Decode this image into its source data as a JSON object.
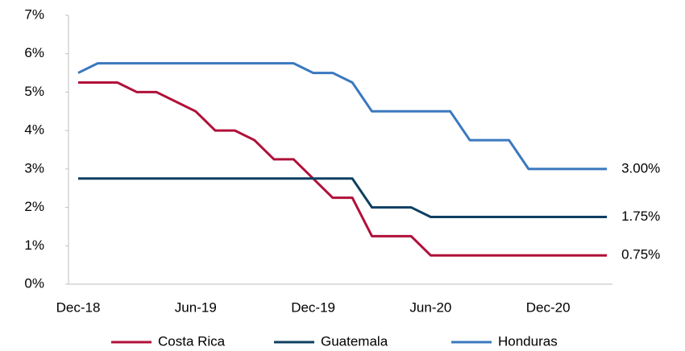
{
  "chart_data": {
    "type": "line",
    "categories": [
      "Dec-18",
      null,
      null,
      null,
      null,
      null,
      "Jun-19",
      null,
      null,
      null,
      null,
      null,
      "Dec-19",
      null,
      null,
      null,
      null,
      null,
      "Jun-20",
      null,
      null,
      null,
      null,
      null,
      "Dec-20",
      null,
      null,
      null
    ],
    "series": [
      {
        "name": "Costa Rica",
        "color": "#b0103a",
        "values": [
          5.25,
          5.25,
          5.25,
          5.0,
          5.0,
          4.75,
          4.5,
          4.0,
          4.0,
          3.75,
          3.25,
          3.25,
          2.75,
          2.25,
          2.25,
          1.25,
          1.25,
          1.25,
          0.75,
          0.75,
          0.75,
          0.75,
          0.75,
          0.75,
          0.75,
          0.75,
          0.75,
          0.75
        ],
        "value_labels": [
          null,
          null,
          null,
          null,
          null,
          null,
          null,
          null,
          null,
          null,
          null,
          null,
          null,
          null,
          null,
          null,
          null,
          null,
          null,
          null,
          null,
          null,
          null,
          null,
          null,
          null,
          null,
          "0.75%"
        ]
      },
      {
        "name": "Guatemala",
        "color": "#0d3f62",
        "values": [
          2.75,
          2.75,
          2.75,
          2.75,
          2.75,
          2.75,
          2.75,
          2.75,
          2.75,
          2.75,
          2.75,
          2.75,
          2.75,
          2.75,
          2.75,
          2.0,
          2.0,
          2.0,
          1.75,
          1.75,
          1.75,
          1.75,
          1.75,
          1.75,
          1.75,
          1.75,
          1.75,
          1.75
        ],
        "value_labels": [
          null,
          null,
          null,
          null,
          null,
          null,
          null,
          null,
          null,
          null,
          null,
          null,
          null,
          null,
          null,
          null,
          null,
          null,
          null,
          null,
          null,
          null,
          null,
          null,
          null,
          null,
          null,
          "1.75%"
        ]
      },
      {
        "name": "Honduras",
        "color": "#3a78bf",
        "values": [
          5.5,
          5.75,
          5.75,
          5.75,
          5.75,
          5.75,
          5.75,
          5.75,
          5.75,
          5.75,
          5.75,
          5.75,
          5.5,
          5.5,
          5.25,
          4.5,
          4.5,
          4.5,
          4.5,
          4.5,
          3.75,
          3.75,
          3.75,
          3.0,
          3.0,
          3.0,
          3.0,
          3.0
        ],
        "value_labels": [
          null,
          null,
          null,
          null,
          null,
          null,
          null,
          null,
          null,
          null,
          null,
          null,
          null,
          null,
          null,
          null,
          null,
          null,
          null,
          null,
          null,
          null,
          null,
          null,
          null,
          null,
          null,
          "3.00%"
        ]
      }
    ],
    "ylim": [
      0,
      7
    ],
    "yticks": [
      {
        "value": 0,
        "label": "0%"
      },
      {
        "value": 1,
        "label": "1%"
      },
      {
        "value": 2,
        "label": "2%"
      },
      {
        "value": 3,
        "label": "3%"
      },
      {
        "value": 4,
        "label": "4%"
      },
      {
        "value": 5,
        "label": "5%"
      },
      {
        "value": 6,
        "label": "6%"
      },
      {
        "value": 7,
        "label": "7%"
      }
    ],
    "legend": "bottom"
  }
}
